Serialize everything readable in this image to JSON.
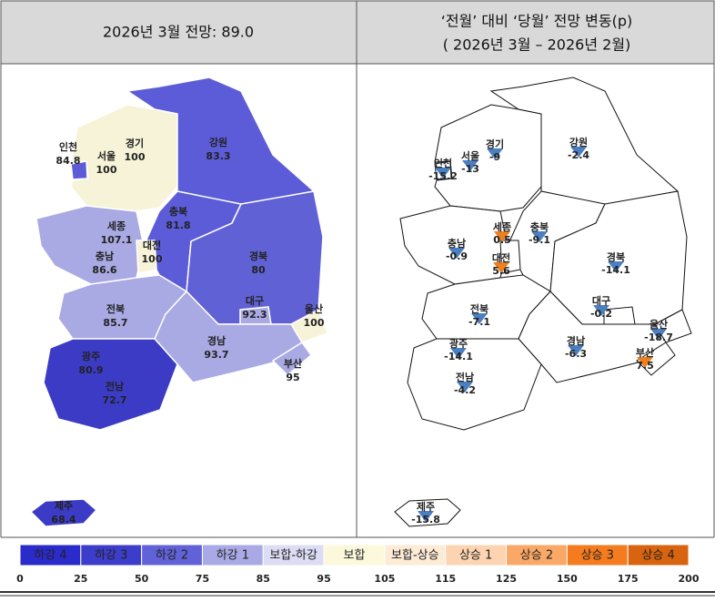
{
  "header": {
    "left": "2026년 3월 전망: 89.0",
    "right_line1": "‘전월’ 대비 ‘당월’ 전망 변동(p)",
    "right_line2": "( 2026년 3월 –  2026년 2월)"
  },
  "left_map": {
    "regions": [
      {
        "name": "인천",
        "value": 84.8,
        "color": "#5c5cd8"
      },
      {
        "name": "서울",
        "value": 100,
        "color": "#f6f3d8"
      },
      {
        "name": "경기",
        "value": 100,
        "color": "#f6f3d8"
      },
      {
        "name": "강원",
        "value": 83.3,
        "color": "#5c5cd8"
      },
      {
        "name": "세종",
        "value": 107.1,
        "color": "#fbeede"
      },
      {
        "name": "충북",
        "value": 81.8,
        "color": "#5c5cd8"
      },
      {
        "name": "충남",
        "value": 86.6,
        "color": "#a9a9e3"
      },
      {
        "name": "대전",
        "value": 100,
        "color": "#f6f3d8"
      },
      {
        "name": "경북",
        "value": 80,
        "color": "#6161d6"
      },
      {
        "name": "대구",
        "value": 92.3,
        "color": "#a9a9e3"
      },
      {
        "name": "울산",
        "value": 100,
        "color": "#f6f3d8"
      },
      {
        "name": "전북",
        "value": 85.7,
        "color": "#a9a9e3"
      },
      {
        "name": "경남",
        "value": 93.7,
        "color": "#a9a9e3"
      },
      {
        "name": "부산",
        "value": 95,
        "color": "#a9a9e3"
      },
      {
        "name": "광주",
        "value": 80.9,
        "color": "#3b3bc6"
      },
      {
        "name": "전남",
        "value": 72.7,
        "color": "#3b3bc6"
      },
      {
        "name": "제주",
        "value": 68.4,
        "color": "#3b3bc6"
      }
    ]
  },
  "right_map": {
    "regions": [
      {
        "name": "인천",
        "value": -15.2,
        "color": "#4a7fc1"
      },
      {
        "name": "서울",
        "value": -13,
        "color": "#4a7fc1"
      },
      {
        "name": "경기",
        "value": -9,
        "color": "#4a7fc1"
      },
      {
        "name": "강원",
        "value": -2.4,
        "color": "#4a7fc1"
      },
      {
        "name": "세종",
        "value": 0.5,
        "color": "#f07f1e"
      },
      {
        "name": "충북",
        "value": -9.1,
        "color": "#4a7fc1"
      },
      {
        "name": "충남",
        "value": -0.9,
        "color": "#4a7fc1"
      },
      {
        "name": "대전",
        "value": 5.6,
        "color": "#f07f1e"
      },
      {
        "name": "경북",
        "value": -14.1,
        "color": "#4a7fc1"
      },
      {
        "name": "대구",
        "value": -0.2,
        "color": "#4a7fc1"
      },
      {
        "name": "울산",
        "value": -18.7,
        "color": "#4a7fc1"
      },
      {
        "name": "전북",
        "value": -7.1,
        "color": "#4a7fc1"
      },
      {
        "name": "경남",
        "value": -6.3,
        "color": "#4a7fc1"
      },
      {
        "name": "부산",
        "value": 7.5,
        "color": "#f07f1e"
      },
      {
        "name": "광주",
        "value": -14.1,
        "color": "#4a7fc1"
      },
      {
        "name": "전남",
        "value": -4.2,
        "color": "#4a7fc1"
      },
      {
        "name": "제주",
        "value": -15.8,
        "color": "#4a7fc1"
      }
    ]
  },
  "legend": {
    "items": [
      {
        "label": "하강 4",
        "color": "#2b2bcc"
      },
      {
        "label": "하강 3",
        "color": "#3d3dcc"
      },
      {
        "label": "하강 2",
        "color": "#6262d8"
      },
      {
        "label": "하강 1",
        "color": "#a9a9e6"
      },
      {
        "label": "보합-하강",
        "color": "#dcdcf4"
      },
      {
        "label": "보합",
        "color": "#fcf8dc"
      },
      {
        "label": "보합-상승",
        "color": "#fdebd6"
      },
      {
        "label": "상승 1",
        "color": "#fcd4b2"
      },
      {
        "label": "상승 2",
        "color": "#f9a867"
      },
      {
        "label": "상승 3",
        "color": "#f47c1e"
      },
      {
        "label": "상승 4",
        "color": "#d9640f"
      }
    ],
    "ticks": [
      0,
      25,
      50,
      75,
      85,
      95,
      105,
      115,
      125,
      150,
      175,
      200
    ]
  }
}
